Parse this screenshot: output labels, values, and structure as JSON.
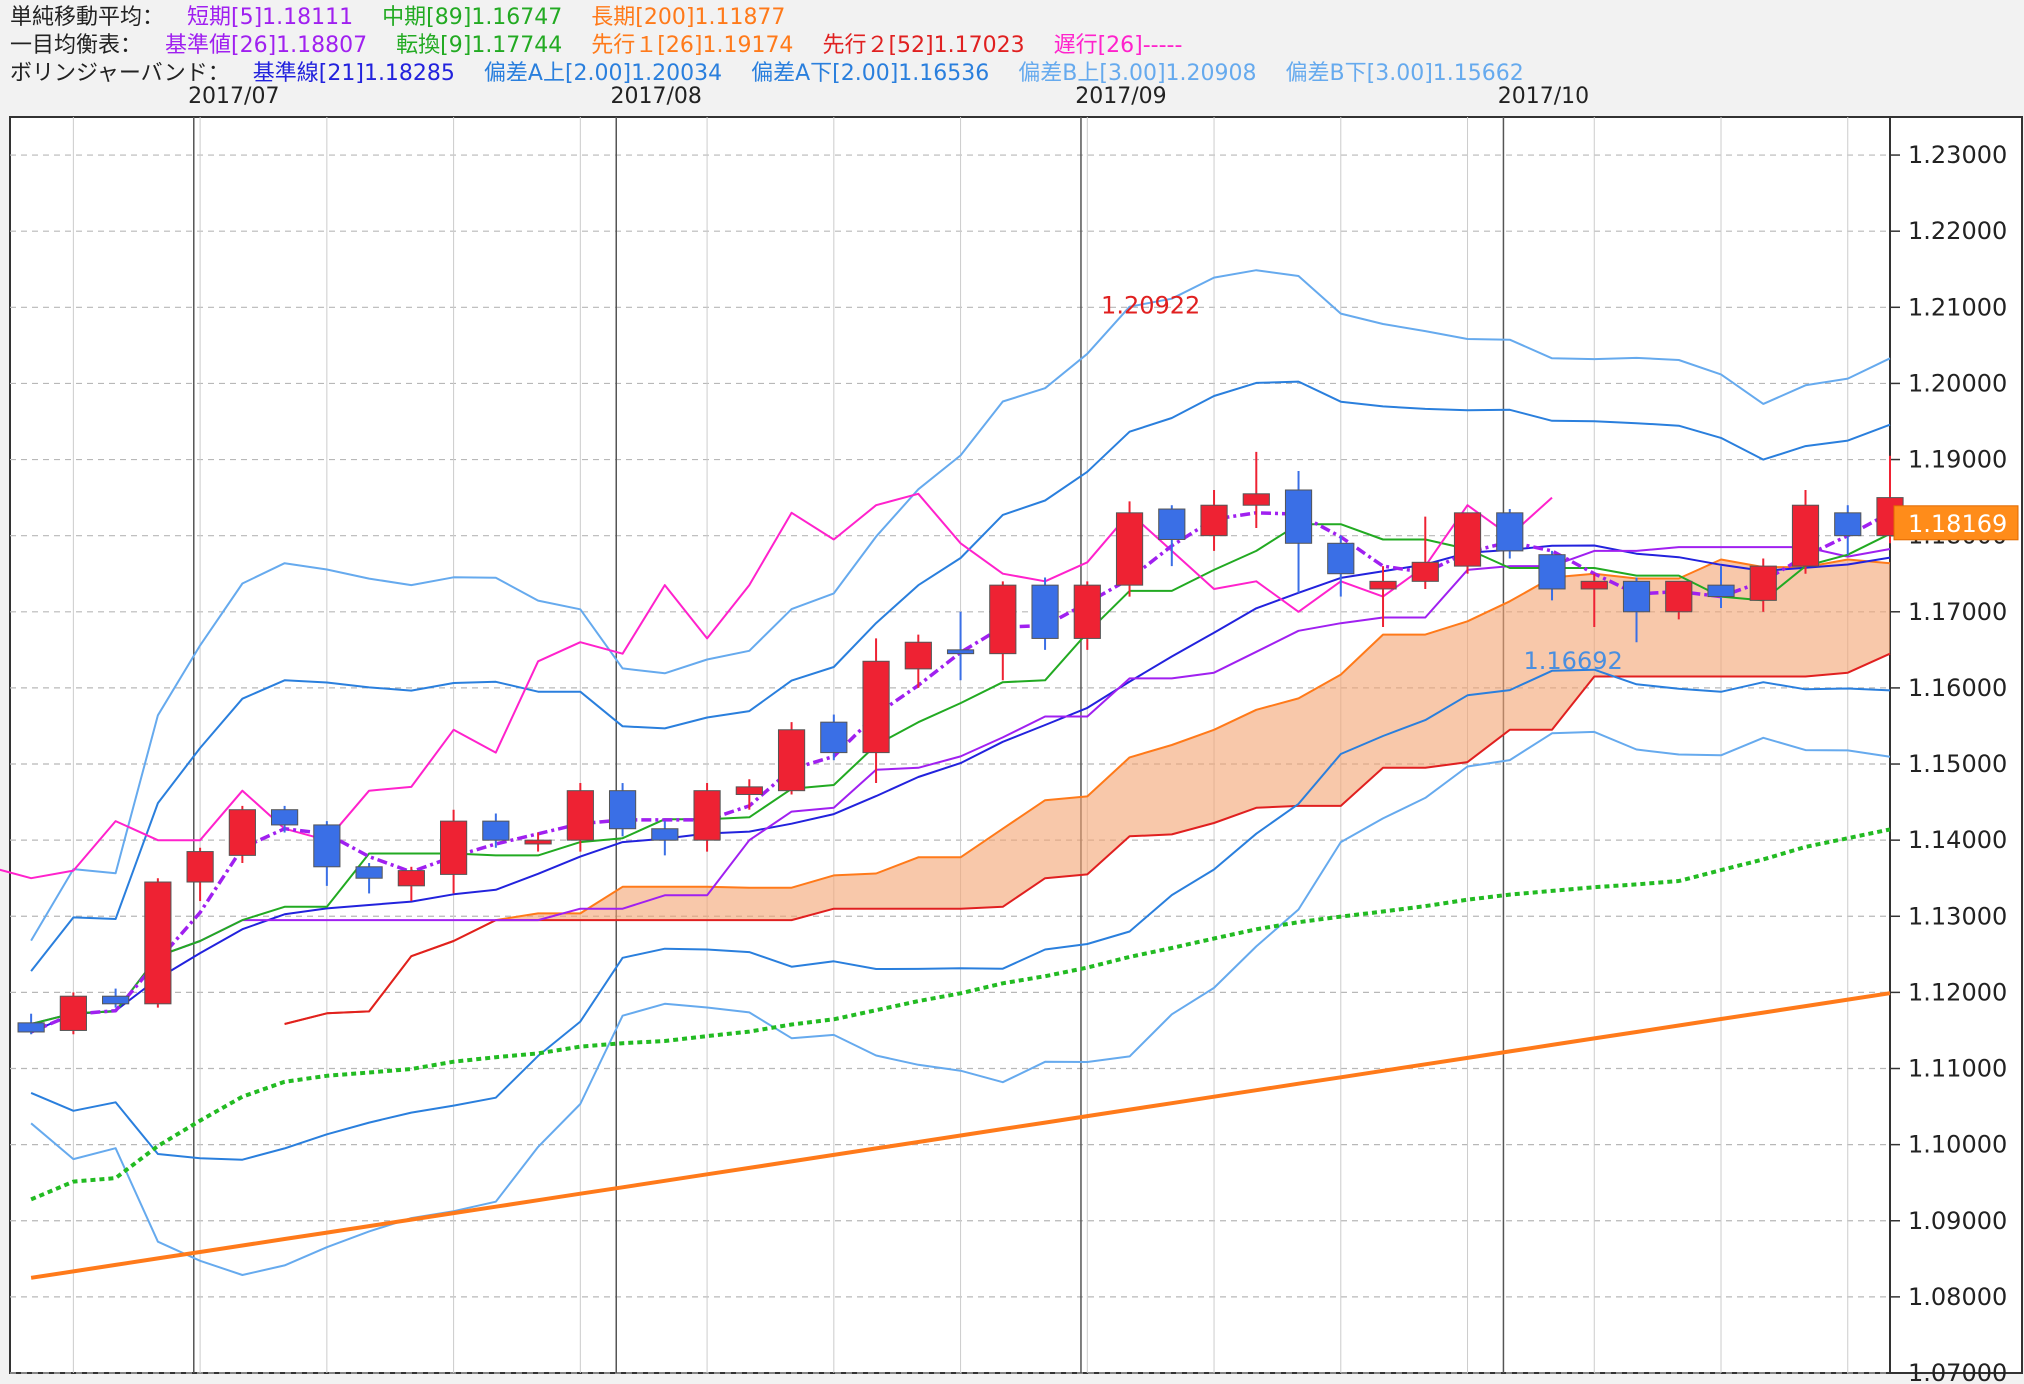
{
  "legend": {
    "sma": {
      "label": "単純移動平均：",
      "short": "短期[5]1.18111",
      "mid": "中期[89]1.16747",
      "long": "長期[200]1.11877",
      "colors": {
        "short": "#a020f0",
        "mid": "#22aa22",
        "long": "#ff7a1a"
      }
    },
    "ichimoku": {
      "label": "一目均衡表：",
      "kijun": "基準値[26]1.18807",
      "tenkan": "転換[9]1.17744",
      "span1": "先行１[26]1.19174",
      "span2": "先行２[52]1.17023",
      "chikou": "遅行[26]-----",
      "colors": {
        "kijun": "#a020f0",
        "tenkan": "#22aa22",
        "span1": "#ff7a1a",
        "span2": "#e02020",
        "chikou": "#ff22cc"
      }
    },
    "bollinger": {
      "label": "ボリンジャーバンド：",
      "mid": "基準線[21]1.18285",
      "a_up": "偏差A上[2.00]1.20034",
      "a_dn": "偏差A下[2.00]1.16536",
      "b_up": "偏差B上[3.00]1.20908",
      "b_dn": "偏差B下[3.00]1.15662",
      "colors": {
        "mid": "#2222dd",
        "a": "#2a7fdd",
        "b": "#66aaee"
      }
    }
  },
  "chart_data": {
    "type": "candlestick",
    "y_axis": {
      "min": 1.07,
      "max": 1.235,
      "ticks": [
        "1.23000",
        "1.22000",
        "1.21000",
        "1.20000",
        "1.19000",
        "1.18000",
        "1.17000",
        "1.16000",
        "1.15000",
        "1.14000",
        "1.13000",
        "1.12000",
        "1.11000",
        "1.10000",
        "1.09000",
        "1.08000",
        "1.07000"
      ]
    },
    "month_labels": [
      {
        "text": "2017/07",
        "week": 4
      },
      {
        "text": "2017/08",
        "week": 14
      },
      {
        "text": "2017/09",
        "week": 25
      },
      {
        "text": "2017/10",
        "week": 35
      }
    ],
    "current_price": "1.18169",
    "annotations": [
      {
        "text": "1.20922",
        "week": 26.5,
        "price": 1.2092,
        "color": "#e02020"
      },
      {
        "text": "1.16692",
        "week": 36.5,
        "price": 1.1625,
        "color": "#4a8fe0"
      }
    ],
    "weeks_visible": 45,
    "candles": [
      [
        1.116,
        1.1172,
        1.1145,
        1.1148
      ],
      [
        1.115,
        1.12,
        1.1145,
        1.1195
      ],
      [
        1.1195,
        1.1205,
        1.118,
        1.1185
      ],
      [
        1.1185,
        1.135,
        1.118,
        1.1345
      ],
      [
        1.1345,
        1.139,
        1.132,
        1.1385
      ],
      [
        1.138,
        1.1445,
        1.137,
        1.144
      ],
      [
        1.144,
        1.1445,
        1.141,
        1.142
      ],
      [
        1.142,
        1.1425,
        1.134,
        1.1365
      ],
      [
        1.1365,
        1.137,
        1.133,
        1.135
      ],
      [
        1.134,
        1.1365,
        1.132,
        1.136
      ],
      [
        1.1355,
        1.144,
        1.133,
        1.1425
      ],
      [
        1.1425,
        1.1435,
        1.139,
        1.14
      ],
      [
        1.1395,
        1.141,
        1.1385,
        1.14
      ],
      [
        1.14,
        1.1475,
        1.1385,
        1.1465
      ],
      [
        1.1465,
        1.1475,
        1.1405,
        1.1415
      ],
      [
        1.1415,
        1.1425,
        1.138,
        1.14
      ],
      [
        1.14,
        1.1475,
        1.1385,
        1.1465
      ],
      [
        1.146,
        1.148,
        1.144,
        1.147
      ],
      [
        1.1465,
        1.1555,
        1.146,
        1.1545
      ],
      [
        1.1555,
        1.1565,
        1.1505,
        1.1515
      ],
      [
        1.1515,
        1.1665,
        1.1475,
        1.1635
      ],
      [
        1.1625,
        1.167,
        1.16,
        1.166
      ],
      [
        1.165,
        1.17,
        1.161,
        1.1645
      ],
      [
        1.1645,
        1.174,
        1.161,
        1.1735
      ],
      [
        1.1735,
        1.1745,
        1.165,
        1.1665
      ],
      [
        1.1665,
        1.174,
        1.165,
        1.1735
      ],
      [
        1.1735,
        1.1845,
        1.172,
        1.183
      ],
      [
        1.1835,
        1.184,
        1.176,
        1.1795
      ],
      [
        1.18,
        1.186,
        1.178,
        1.184
      ],
      [
        1.184,
        1.191,
        1.181,
        1.1855
      ],
      [
        1.186,
        1.1885,
        1.1725,
        1.179
      ],
      [
        1.179,
        1.18,
        1.172,
        1.175
      ],
      [
        1.173,
        1.176,
        1.168,
        1.174
      ],
      [
        1.174,
        1.1825,
        1.173,
        1.1765
      ],
      [
        1.176,
        1.183,
        1.175,
        1.183
      ],
      [
        1.183,
        1.1835,
        1.177,
        1.178
      ],
      [
        1.1775,
        1.178,
        1.1715,
        1.173
      ],
      [
        1.173,
        1.175,
        1.168,
        1.174
      ],
      [
        1.174,
        1.1745,
        1.166,
        1.17
      ],
      [
        1.17,
        1.174,
        1.169,
        1.174
      ],
      [
        1.1735,
        1.176,
        1.1705,
        1.172
      ],
      [
        1.1715,
        1.177,
        1.17,
        1.176
      ],
      [
        1.176,
        1.186,
        1.175,
        1.184
      ],
      [
        1.183,
        1.184,
        1.1775,
        1.18
      ],
      [
        1.18,
        1.1905,
        1.179,
        1.185
      ]
    ]
  }
}
